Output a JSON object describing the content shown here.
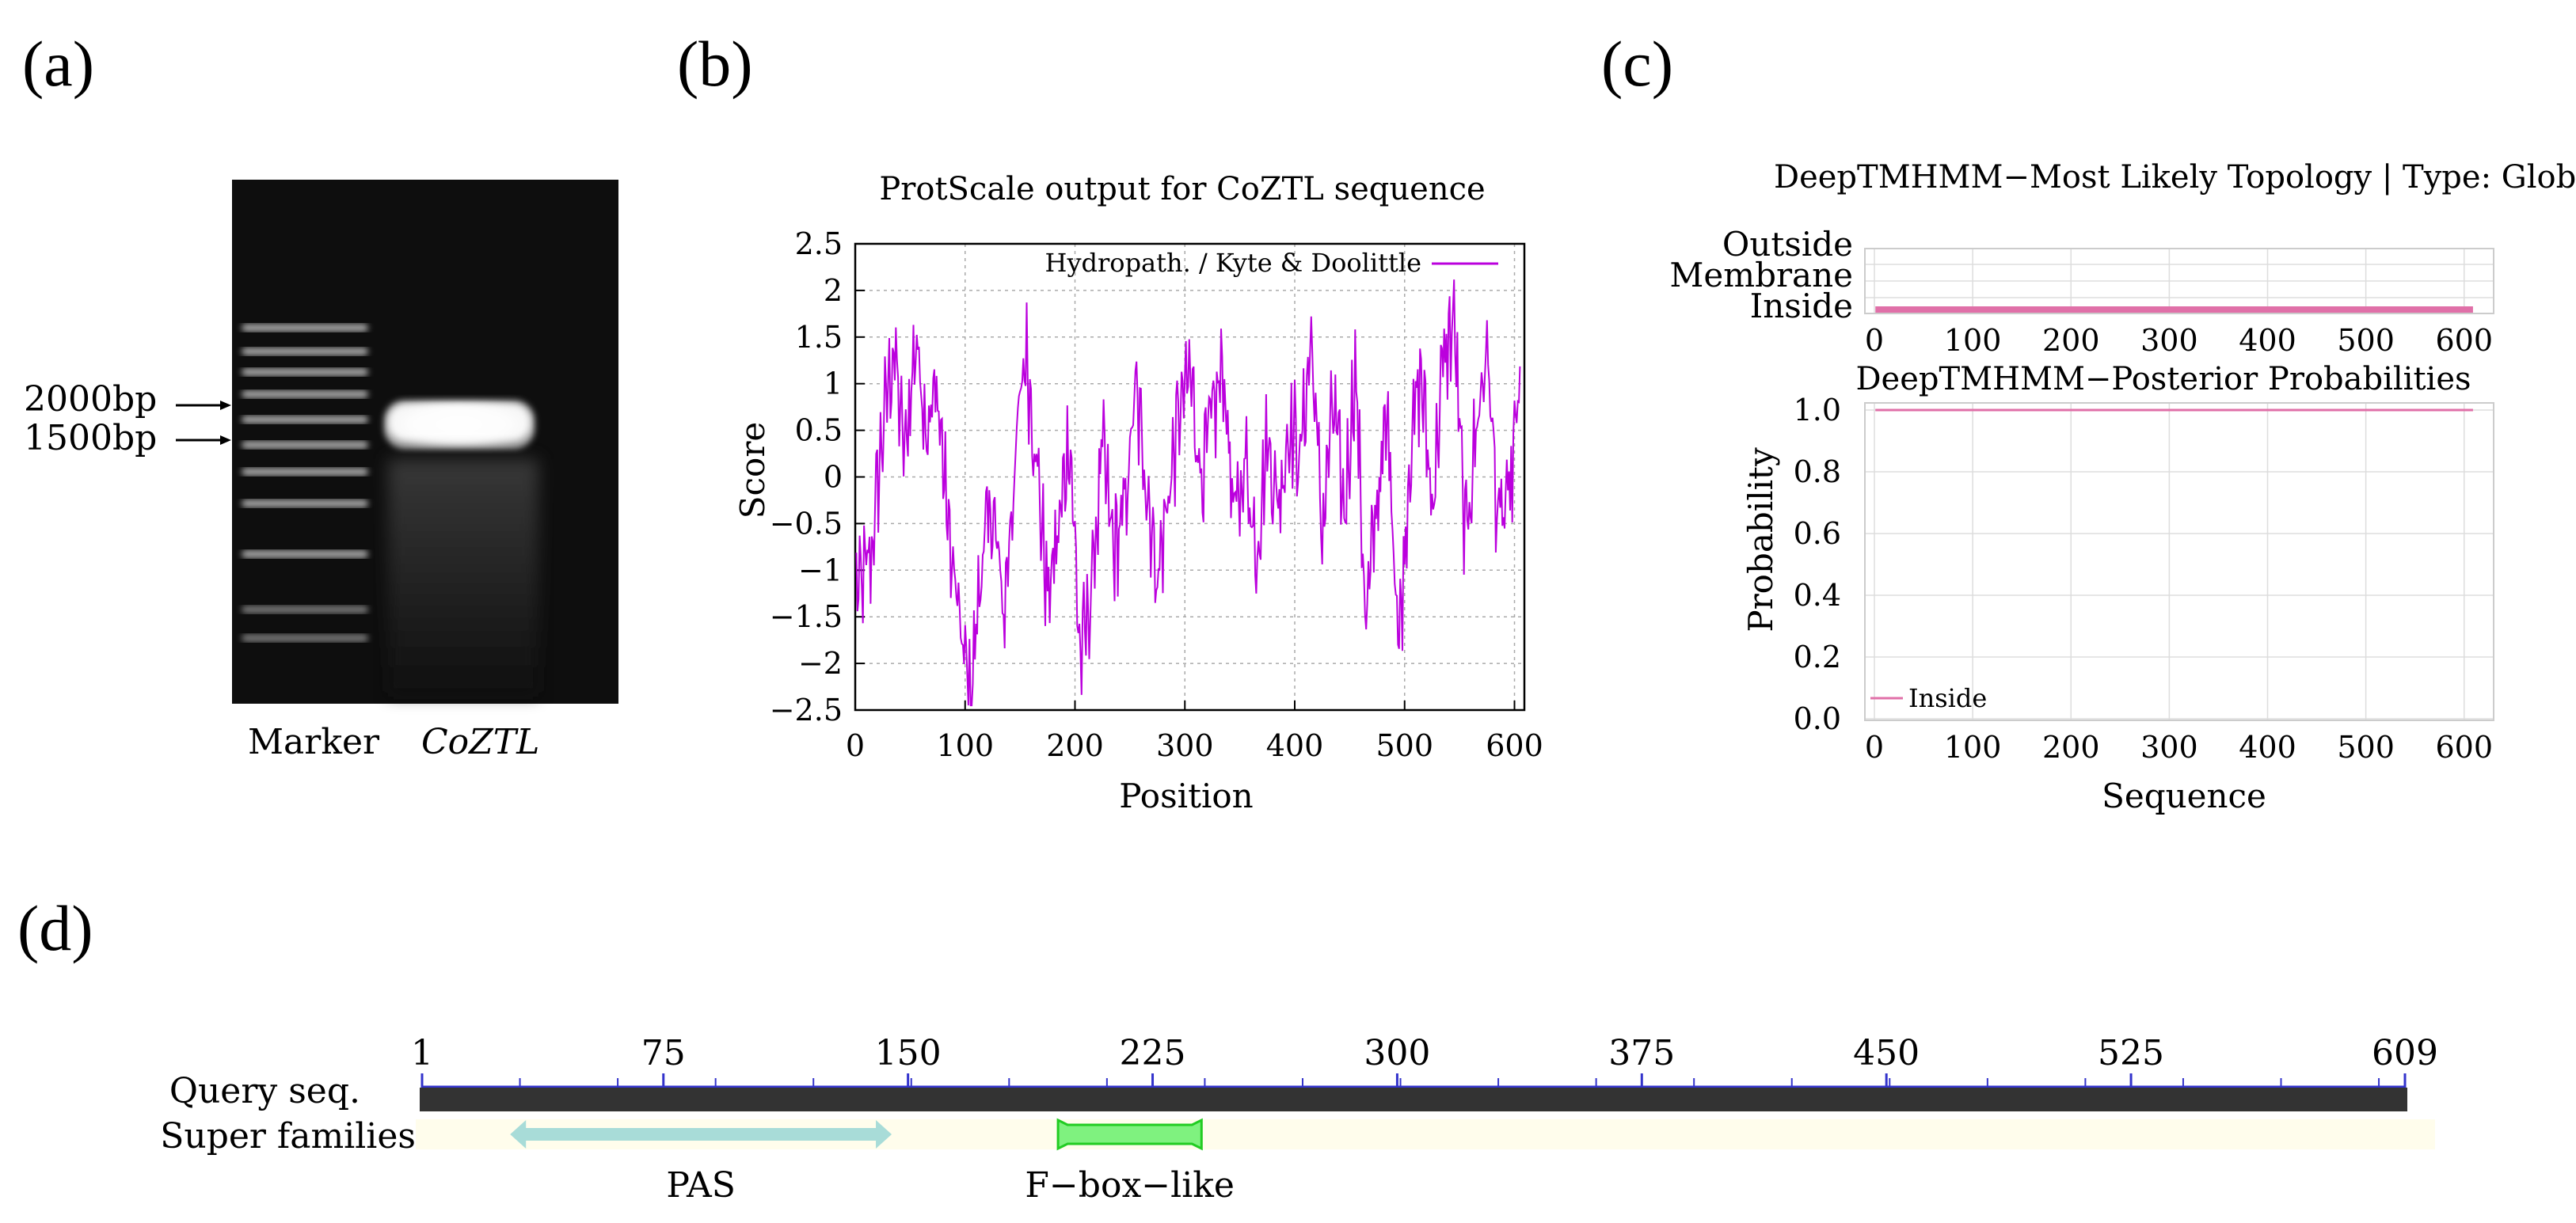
{
  "panel_labels": {
    "a": "(a)",
    "b": "(b)",
    "c": "(c)",
    "d": "(d)"
  },
  "colors": {
    "hydro": "#bb00dd",
    "deeptm": "#e070a8",
    "grid": "#bbbbbb",
    "gel_bg": "#0e0e0e",
    "query_bar": "#333333",
    "pas": "#a8dcd8",
    "fbox": "#7ff27f",
    "fbox_edge": "#22cc22",
    "super_bg": "#fffdec",
    "ruler_tick": "#3333cc"
  },
  "chart_data": [
    {
      "id": "gel",
      "type": "gel_image",
      "lane_labels": [
        "Marker",
        "CoZTL"
      ],
      "marker_labels": [
        "2000bp",
        "1500bp"
      ]
    },
    {
      "id": "protscale",
      "type": "line",
      "title": "ProtScale output for CoZTL sequence",
      "xlabel": "Position",
      "ylabel": "Score",
      "xlim": [
        0,
        609
      ],
      "ylim": [
        -2.5,
        2.5
      ],
      "xticks": [
        "0",
        "100",
        "200",
        "300",
        "400",
        "500",
        "600"
      ],
      "yticks": [
        "2.5",
        "2",
        "1.5",
        "1",
        "0.5",
        "0",
        "−0.5",
        "−1",
        "−1.5",
        "−2",
        "−2.5"
      ],
      "legend": "Hydropath. / Kyte & Doolittle",
      "series": [
        {
          "name": "Hydropath. / Kyte & Doolittle",
          "x_start": 5,
          "x_step": 10,
          "values": [
            -1.2,
            -0.8,
            0.5,
            1.4,
            0.2,
            1.5,
            0.6,
            0.9,
            -0.6,
            -1.6,
            -2.4,
            -0.9,
            -0.3,
            -1.5,
            0.1,
            1.4,
            0.2,
            -1.3,
            -0.6,
            0.5,
            -2.0,
            -1.2,
            0.3,
            -0.8,
            -0.4,
            0.9,
            0.0,
            -1.1,
            -0.2,
            0.7,
            1.1,
            0.0,
            0.6,
            1.2,
            -0.5,
            0.2,
            -0.8,
            0.4,
            -0.3,
            0.6,
            0.2,
            1.5,
            -0.6,
            0.8,
            -0.4,
            1.2,
            -1.6,
            -0.2,
            0.6,
            -1.8,
            0.3,
            1.1,
            -0.3,
            1.2,
            1.7,
            -0.7,
            0.5,
            1.4,
            -0.5,
            -0.3,
            1.0
          ]
        }
      ]
    },
    {
      "id": "topology",
      "type": "line",
      "title": "DeepTMHMM−Most Likely Topology | Type: Globular",
      "ylabels": [
        "Outside",
        "Membrane",
        "Inside"
      ],
      "xticks": [
        "0",
        "100",
        "200",
        "300",
        "400",
        "500",
        "600"
      ],
      "xlim": [
        0,
        630
      ],
      "series": [
        {
          "name": "Inside",
          "x": [
            1,
            609
          ],
          "level": "Inside"
        }
      ]
    },
    {
      "id": "posterior",
      "type": "line",
      "title": "DeepTMHMM−Posterior Probabilities",
      "xlabel": "Sequence",
      "ylabel": "Probability",
      "xlim": [
        0,
        630
      ],
      "ylim": [
        0.0,
        1.0
      ],
      "xticks": [
        "0",
        "100",
        "200",
        "300",
        "400",
        "500",
        "600"
      ],
      "yticks": [
        "1.0",
        "0.8",
        "0.6",
        "0.4",
        "0.2",
        "0.0"
      ],
      "legend": "Inside",
      "series": [
        {
          "name": "Inside",
          "x": [
            1,
            609
          ],
          "y": [
            1.0,
            1.0
          ]
        }
      ]
    },
    {
      "id": "domains",
      "type": "domain_map",
      "row_labels": [
        "Query seq.",
        "Super families"
      ],
      "ruler_ticks": [
        "1",
        "75",
        "150",
        "225",
        "300",
        "375",
        "450",
        "525",
        "609"
      ],
      "length": 609,
      "domains": [
        {
          "name": "PAS",
          "start": 28,
          "end": 145
        },
        {
          "name": "F−box−like",
          "start": 196,
          "end": 240
        }
      ]
    }
  ]
}
